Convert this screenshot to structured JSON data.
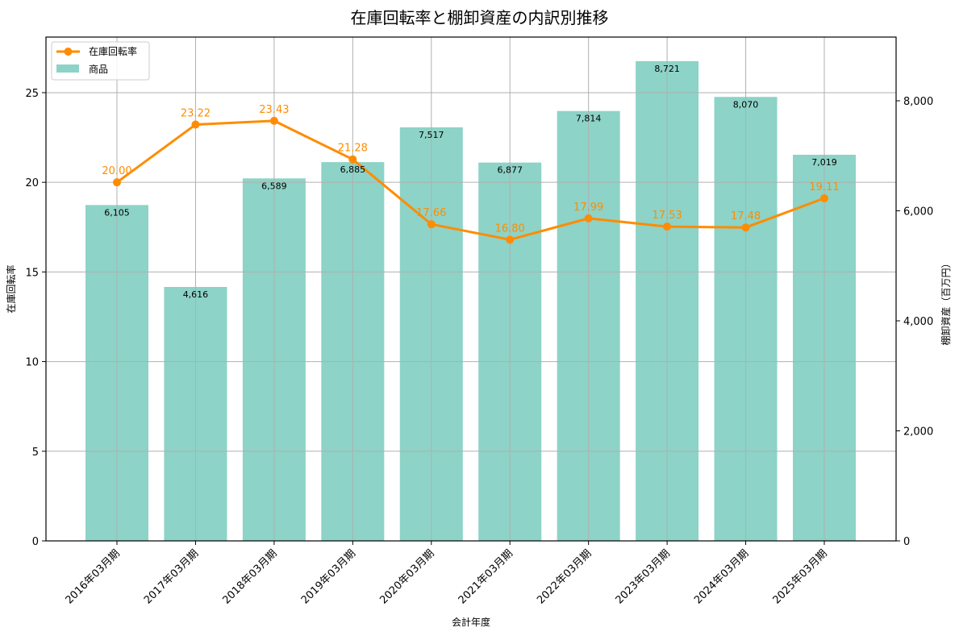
{
  "chart_data": {
    "type": "bar+line",
    "title": "在庫回転率と棚卸資産の内訳別推移",
    "xlabel": "会計年度",
    "ylabel_left": "在庫回転率",
    "ylabel_right": "棚卸資産（百万円）",
    "categories": [
      "2016年03月期",
      "2017年03月期",
      "2018年03月期",
      "2019年03月期",
      "2020年03月期",
      "2021年03月期",
      "2022年03月期",
      "2023年03月期",
      "2024年03月期",
      "2025年03月期"
    ],
    "series": [
      {
        "name": "商品",
        "type": "bar",
        "axis": "right",
        "color": "#8dd3c7",
        "values": [
          6105,
          4616,
          6589,
          6885,
          7517,
          6877,
          7814,
          8721,
          8070,
          7019
        ],
        "labels": [
          "6,105",
          "4,616",
          "6,589",
          "6,885",
          "7,517",
          "6,877",
          "7,814",
          "8,721",
          "8,070",
          "7,019"
        ]
      },
      {
        "name": "在庫回転率",
        "type": "line",
        "axis": "left",
        "color": "#ff8c00",
        "marker": "circle",
        "values": [
          20.0,
          23.22,
          23.43,
          21.28,
          17.66,
          16.8,
          17.99,
          17.53,
          17.48,
          19.11
        ],
        "labels": [
          "20.00",
          "23.22",
          "23.43",
          "21.28",
          "17.66",
          "16.80",
          "17.99",
          "17.53",
          "17.48",
          "19.11"
        ]
      }
    ],
    "ylim_left": [
      0,
      28.1
    ],
    "ylim_right": [
      0,
      9158
    ],
    "yticks_left": [
      "0",
      "5",
      "10",
      "15",
      "20",
      "25"
    ],
    "yticks_right": [
      "0",
      "2,000",
      "4,000",
      "6,000",
      "8,000"
    ],
    "grid": true,
    "legend_position": "upper left",
    "legend": [
      "在庫回転率",
      "商品"
    ]
  }
}
